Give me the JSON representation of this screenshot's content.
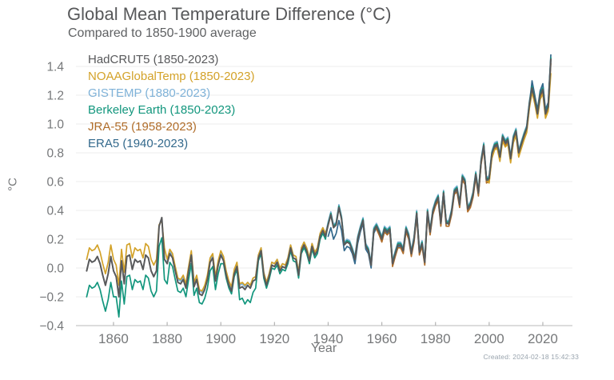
{
  "header": {
    "title": "Global Mean Temperature Difference (°C)",
    "subtitle": "Compared to 1850-1900 average"
  },
  "footer": {
    "created_label": "Created: 2024-02-18 15:42:33"
  },
  "chart_data": {
    "type": "line",
    "title": "Global Mean Temperature Difference (°C)",
    "subtitle": "Compared to 1850-1900 average",
    "xlabel": "Year",
    "ylabel": "°C",
    "xlim": [
      1846,
      2031
    ],
    "ylim": [
      -0.4,
      1.53
    ],
    "x_ticks": [
      1860,
      1880,
      1900,
      1920,
      1940,
      1960,
      1980,
      2000,
      2020
    ],
    "y_ticks": [
      -0.4,
      -0.2,
      0.0,
      0.2,
      0.4,
      0.6,
      0.8,
      1.0,
      1.2,
      1.4
    ],
    "grid": "horizontal",
    "legend_position": "top-left-inside",
    "series": [
      {
        "name": "hadcrut5",
        "label": "HadCRUT5 (1850-2023)",
        "color": "#58595b",
        "start_year": 1850,
        "values": [
          -0.02,
          0.06,
          0.04,
          0.05,
          0.08,
          0.03,
          -0.05,
          -0.12,
          -0.04,
          0.08,
          -0.02,
          -0.06,
          -0.2,
          0.05,
          -0.11,
          0.08,
          0.09,
          -0.01,
          0.06,
          0.04,
          0.05,
          -0.01,
          0.09,
          0.07,
          -0.02,
          -0.06,
          -0.02,
          0.29,
          0.35,
          0.06,
          0.03,
          0.1,
          0.07,
          -0.02,
          -0.1,
          -0.11,
          -0.08,
          -0.14,
          -0.02,
          0.09,
          -0.13,
          -0.08,
          -0.18,
          -0.19,
          -0.15,
          -0.08,
          0.04,
          0.07,
          -0.09,
          0.02,
          0.09,
          0.05,
          -0.05,
          -0.12,
          -0.16,
          -0.04,
          0.01,
          -0.14,
          -0.13,
          -0.15,
          -0.12,
          -0.14,
          -0.09,
          -0.08,
          0.07,
          0.12,
          -0.05,
          -0.12,
          -0.06,
          0.02,
          0.01,
          0.04,
          -0.02,
          0.01,
          0.0,
          0.05,
          0.14,
          0.07,
          0.06,
          -0.05,
          0.12,
          0.16,
          0.12,
          0.05,
          0.15,
          0.09,
          0.12,
          0.22,
          0.26,
          0.22,
          0.3,
          0.37,
          0.28,
          0.3,
          0.42,
          0.34,
          0.16,
          0.18,
          0.17,
          0.12,
          0.06,
          0.2,
          0.27,
          0.33,
          0.15,
          0.12,
          0.02,
          0.26,
          0.29,
          0.25,
          0.2,
          0.27,
          0.25,
          0.27,
          0.03,
          0.1,
          0.16,
          0.16,
          0.12,
          0.27,
          0.22,
          0.1,
          0.2,
          0.38,
          0.11,
          0.17,
          0.04,
          0.39,
          0.25,
          0.39,
          0.45,
          0.49,
          0.31,
          0.52,
          0.31,
          0.31,
          0.39,
          0.53,
          0.55,
          0.44,
          0.63,
          0.6,
          0.41,
          0.44,
          0.51,
          0.65,
          0.52,
          0.74,
          0.85,
          0.61,
          0.62,
          0.79,
          0.85,
          0.86,
          0.77,
          0.91,
          0.87,
          0.89,
          0.76,
          0.9,
          0.95,
          0.8,
          0.86,
          0.92,
          0.97,
          1.14,
          1.25,
          1.17,
          1.07,
          1.2,
          1.24,
          1.07,
          1.12,
          1.45
        ]
      },
      {
        "name": "noaaglobaltemp",
        "label": "NOAAGlobalTemp (1850-2023)",
        "color": "#d3a229",
        "start_year": 1850,
        "values": [
          0.06,
          0.14,
          0.12,
          0.13,
          0.16,
          0.11,
          0.03,
          -0.04,
          0.04,
          0.16,
          0.06,
          0.02,
          -0.12,
          0.13,
          -0.03,
          0.16,
          0.17,
          0.07,
          0.14,
          0.12,
          0.13,
          0.07,
          0.17,
          0.15,
          0.06,
          0.02,
          0.06,
          0.3,
          0.33,
          0.14,
          0.06,
          0.13,
          0.1,
          0.01,
          -0.07,
          -0.08,
          -0.05,
          -0.11,
          0.01,
          0.12,
          -0.1,
          -0.05,
          -0.15,
          -0.16,
          -0.12,
          -0.05,
          0.07,
          0.1,
          -0.06,
          0.05,
          0.12,
          0.08,
          -0.02,
          -0.09,
          -0.13,
          -0.01,
          0.04,
          -0.11,
          -0.1,
          -0.12,
          -0.1,
          -0.12,
          -0.07,
          -0.06,
          0.09,
          0.14,
          -0.03,
          -0.1,
          -0.04,
          0.04,
          0.03,
          0.06,
          0.0,
          0.03,
          0.02,
          0.07,
          0.16,
          0.09,
          0.08,
          -0.03,
          0.14,
          0.18,
          0.14,
          0.07,
          0.17,
          0.11,
          0.14,
          0.24,
          0.28,
          0.24,
          0.3,
          0.37,
          0.28,
          0.3,
          0.42,
          0.34,
          0.16,
          0.18,
          0.17,
          0.12,
          0.06,
          0.2,
          0.27,
          0.33,
          0.15,
          0.12,
          0.02,
          0.26,
          0.29,
          0.25,
          0.2,
          0.27,
          0.25,
          0.27,
          0.03,
          0.1,
          0.16,
          0.16,
          0.12,
          0.27,
          0.22,
          0.1,
          0.2,
          0.38,
          0.11,
          0.17,
          0.04,
          0.39,
          0.25,
          0.39,
          0.45,
          0.49,
          0.31,
          0.52,
          0.31,
          0.31,
          0.39,
          0.53,
          0.55,
          0.44,
          0.63,
          0.6,
          0.41,
          0.44,
          0.51,
          0.65,
          0.52,
          0.74,
          0.85,
          0.61,
          0.59,
          0.76,
          0.82,
          0.83,
          0.74,
          0.88,
          0.84,
          0.86,
          0.73,
          0.87,
          0.92,
          0.77,
          0.83,
          0.89,
          0.94,
          1.11,
          1.22,
          1.14,
          1.04,
          1.17,
          1.21,
          1.04,
          1.09,
          1.35
        ]
      },
      {
        "name": "gistemp",
        "label": "GISTEMP (1880-2023)",
        "color": "#7fb2d8",
        "start_year": 1880,
        "values": [
          0.05,
          0.12,
          0.09,
          0.0,
          -0.08,
          -0.09,
          -0.06,
          -0.12,
          0.0,
          0.11,
          -0.11,
          -0.06,
          -0.16,
          -0.17,
          -0.13,
          -0.06,
          0.06,
          0.09,
          -0.07,
          0.04,
          0.11,
          0.07,
          -0.03,
          -0.1,
          -0.14,
          -0.02,
          0.03,
          -0.12,
          -0.11,
          -0.13,
          -0.1,
          -0.12,
          -0.07,
          -0.06,
          0.09,
          0.14,
          -0.03,
          -0.1,
          -0.04,
          0.04,
          0.03,
          0.06,
          0.0,
          0.03,
          0.02,
          0.07,
          0.16,
          0.09,
          0.08,
          -0.03,
          0.14,
          0.18,
          0.14,
          0.07,
          0.17,
          0.11,
          0.14,
          0.24,
          0.28,
          0.24,
          0.32,
          0.39,
          0.3,
          0.32,
          0.44,
          0.36,
          0.18,
          0.2,
          0.19,
          0.14,
          0.08,
          0.22,
          0.29,
          0.35,
          0.17,
          0.14,
          0.04,
          0.28,
          0.31,
          0.27,
          0.22,
          0.29,
          0.27,
          0.29,
          0.05,
          0.12,
          0.18,
          0.18,
          0.14,
          0.29,
          0.24,
          0.12,
          0.22,
          0.4,
          0.13,
          0.19,
          0.06,
          0.41,
          0.27,
          0.41,
          0.47,
          0.51,
          0.33,
          0.54,
          0.33,
          0.33,
          0.41,
          0.55,
          0.57,
          0.46,
          0.65,
          0.62,
          0.43,
          0.46,
          0.53,
          0.67,
          0.54,
          0.76,
          0.87,
          0.63,
          0.64,
          0.81,
          0.87,
          0.88,
          0.79,
          0.93,
          0.89,
          0.91,
          0.78,
          0.92,
          0.97,
          0.82,
          0.88,
          0.94,
          0.99,
          1.16,
          1.28,
          1.19,
          1.09,
          1.22,
          1.27,
          1.09,
          1.14,
          1.44
        ]
      },
      {
        "name": "berkeley-earth",
        "label": "Berkeley Earth (1850-2023)",
        "color": "#12967d",
        "start_year": 1850,
        "values": [
          -0.2,
          -0.12,
          -0.14,
          -0.13,
          -0.1,
          -0.15,
          -0.23,
          -0.3,
          -0.22,
          -0.1,
          -0.2,
          -0.2,
          -0.34,
          -0.09,
          -0.25,
          -0.06,
          -0.05,
          -0.15,
          -0.08,
          -0.1,
          -0.09,
          -0.15,
          -0.05,
          -0.07,
          -0.16,
          -0.2,
          -0.16,
          0.15,
          0.21,
          -0.08,
          -0.11,
          0.04,
          0.01,
          -0.08,
          -0.16,
          -0.17,
          -0.14,
          -0.2,
          -0.08,
          0.03,
          -0.19,
          -0.14,
          -0.24,
          -0.25,
          -0.21,
          -0.14,
          -0.02,
          0.01,
          -0.15,
          -0.04,
          0.03,
          0.03,
          -0.07,
          -0.14,
          -0.18,
          -0.06,
          -0.01,
          -0.22,
          -0.21,
          -0.25,
          -0.22,
          -0.24,
          -0.17,
          -0.14,
          0.05,
          0.1,
          -0.07,
          -0.14,
          -0.08,
          0.0,
          -0.01,
          0.02,
          -0.04,
          -0.01,
          -0.02,
          0.03,
          0.12,
          0.05,
          0.04,
          -0.07,
          0.1,
          0.14,
          0.1,
          0.03,
          0.13,
          0.07,
          0.1,
          0.2,
          0.24,
          0.2,
          0.31,
          0.38,
          0.29,
          0.31,
          0.43,
          0.35,
          0.17,
          0.19,
          0.18,
          0.13,
          0.07,
          0.21,
          0.28,
          0.34,
          0.16,
          0.13,
          0.03,
          0.27,
          0.3,
          0.26,
          0.21,
          0.28,
          0.26,
          0.28,
          0.04,
          0.11,
          0.17,
          0.17,
          0.13,
          0.28,
          0.23,
          0.11,
          0.21,
          0.39,
          0.12,
          0.18,
          0.05,
          0.4,
          0.26,
          0.4,
          0.46,
          0.5,
          0.32,
          0.53,
          0.32,
          0.32,
          0.4,
          0.54,
          0.56,
          0.45,
          0.64,
          0.61,
          0.42,
          0.45,
          0.52,
          0.66,
          0.53,
          0.75,
          0.86,
          0.62,
          0.63,
          0.8,
          0.86,
          0.87,
          0.78,
          0.92,
          0.88,
          0.9,
          0.77,
          0.91,
          0.96,
          0.81,
          0.87,
          0.93,
          0.98,
          1.15,
          1.26,
          1.18,
          1.08,
          1.21,
          1.25,
          1.08,
          1.13,
          1.46
        ]
      },
      {
        "name": "jra-55",
        "label": "JRA-55 (1958-2023)",
        "color": "#b06d2a",
        "start_year": 1958,
        "values": [
          0.27,
          0.23,
          0.18,
          0.25,
          0.23,
          0.25,
          0.01,
          0.08,
          0.14,
          0.14,
          0.1,
          0.25,
          0.2,
          0.08,
          0.18,
          0.36,
          0.09,
          0.15,
          0.02,
          0.37,
          0.23,
          0.37,
          0.43,
          0.47,
          0.29,
          0.5,
          0.29,
          0.29,
          0.37,
          0.51,
          0.53,
          0.42,
          0.61,
          0.58,
          0.39,
          0.42,
          0.49,
          0.63,
          0.5,
          0.72,
          0.83,
          0.59,
          0.6,
          0.77,
          0.83,
          0.84,
          0.75,
          0.89,
          0.85,
          0.87,
          0.74,
          0.88,
          0.93,
          0.78,
          0.84,
          0.9,
          0.95,
          1.12,
          1.24,
          1.16,
          1.06,
          1.19,
          1.23,
          1.06,
          1.11,
          1.42
        ]
      },
      {
        "name": "era5",
        "label": "ERA5 (1940-2023)",
        "color": "#33698c",
        "start_year": 1940,
        "values": [
          0.22,
          0.28,
          0.2,
          0.24,
          0.33,
          0.26,
          0.12,
          0.15,
          0.14,
          0.1,
          0.03,
          0.17,
          0.25,
          0.31,
          0.13,
          0.1,
          0.0,
          0.24,
          0.28,
          0.24,
          0.19,
          0.26,
          0.24,
          0.26,
          0.02,
          0.09,
          0.15,
          0.15,
          0.11,
          0.26,
          0.21,
          0.09,
          0.19,
          0.37,
          0.1,
          0.16,
          0.03,
          0.38,
          0.24,
          0.4,
          0.44,
          0.5,
          0.3,
          0.53,
          0.32,
          0.3,
          0.38,
          0.52,
          0.54,
          0.45,
          0.62,
          0.61,
          0.4,
          0.43,
          0.5,
          0.64,
          0.51,
          0.73,
          0.84,
          0.6,
          0.61,
          0.78,
          0.84,
          0.85,
          0.76,
          0.9,
          0.86,
          0.88,
          0.75,
          0.89,
          0.94,
          0.79,
          0.85,
          0.91,
          0.96,
          1.13,
          1.3,
          1.2,
          1.1,
          1.23,
          1.28,
          1.1,
          1.15,
          1.48
        ]
      }
    ]
  }
}
